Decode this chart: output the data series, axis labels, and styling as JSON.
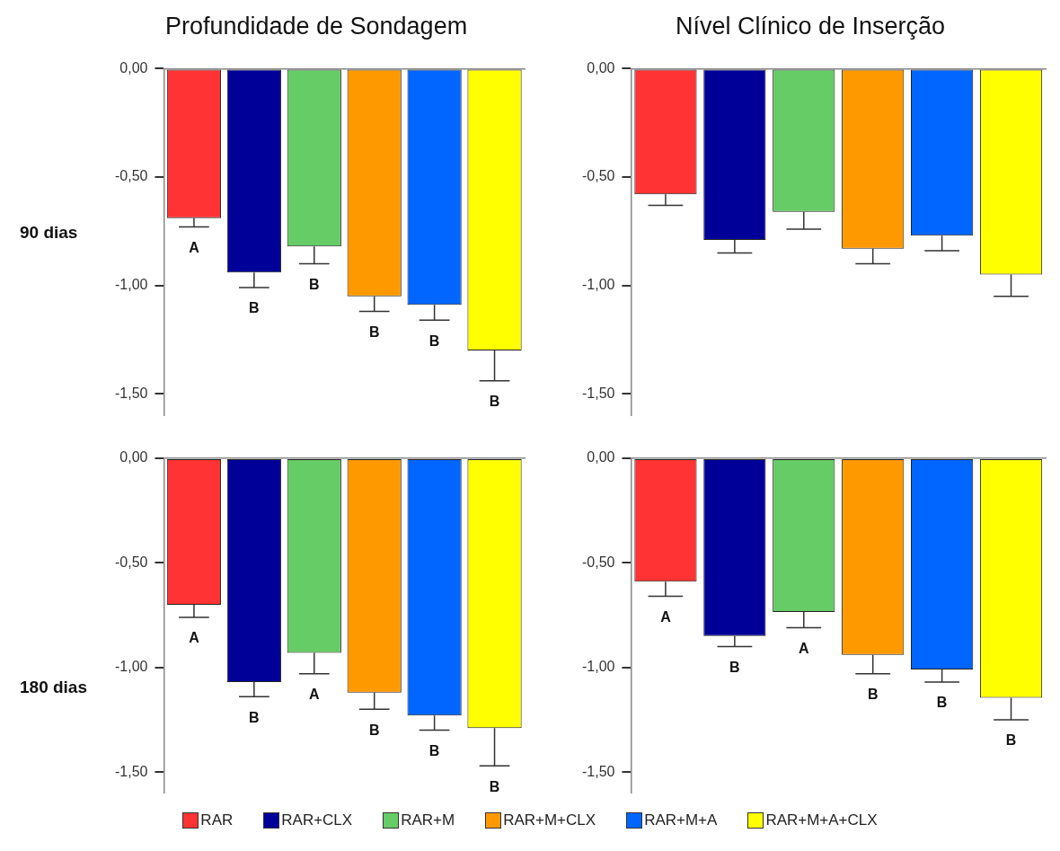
{
  "chart_data": [
    {
      "type": "bar",
      "title": "Profundidade de Sondagem",
      "ylabel": "90 dias",
      "categories": [
        null
      ],
      "ylim": [
        -1.6,
        0
      ],
      "yticks": [
        {
          "value": 0,
          "label": "0,00"
        },
        {
          "value": -0.5,
          "label": "-0,50"
        },
        {
          "value": -1,
          "label": "-1,00"
        },
        {
          "value": -1.5,
          "label": "-1,50"
        }
      ],
      "legend": "bottom",
      "series": [
        {
          "name": "RAR",
          "color": "#ff3333",
          "values": [
            -0.69
          ],
          "errors": [
            [
              -0.73,
              -0.69
            ]
          ]
        },
        {
          "name": "RAR+CLX",
          "color": "#000099",
          "values": [
            -0.94
          ],
          "errors": [
            [
              -1.01,
              -0.94
            ]
          ]
        },
        {
          "name": "RAR+M",
          "color": "#66cc66",
          "values": [
            -0.82
          ],
          "errors": [
            [
              -0.9,
              -0.82
            ]
          ]
        },
        {
          "name": "RAR+M+CLX",
          "color": "#ff9900",
          "values": [
            -1.05
          ],
          "errors": [
            [
              -1.12,
              -1.05
            ]
          ]
        },
        {
          "name": "RAR+M+A",
          "color": "#0066ff",
          "values": [
            -1.09
          ],
          "errors": [
            [
              -1.16,
              -1.09
            ]
          ]
        },
        {
          "name": "RAR+M+A+CLX",
          "color": "#ffff00",
          "values": [
            -1.3
          ],
          "errors": [
            [
              -1.44,
              -1.3
            ]
          ]
        }
      ],
      "annotations": [
        "A",
        "B",
        "B",
        "B",
        "B",
        "B"
      ]
    },
    {
      "type": "bar",
      "title": "Nível Clínico de Inserção",
      "categories": [
        null
      ],
      "ylim": [
        -1.6,
        0
      ],
      "yticks": [
        {
          "value": 0,
          "label": "0,00"
        },
        {
          "value": -0.5,
          "label": "-0,50"
        },
        {
          "value": -1,
          "label": "-1,00"
        },
        {
          "value": -1.5,
          "label": "-1,50"
        }
      ],
      "series": [
        {
          "color": "#ff3333",
          "values": [
            -0.58
          ],
          "errors": [
            [
              -0.63,
              -0.58
            ]
          ]
        },
        {
          "color": "#000099",
          "values": [
            -0.79
          ],
          "errors": [
            [
              -0.85,
              -0.79
            ]
          ]
        },
        {
          "color": "#66cc66",
          "values": [
            -0.66
          ],
          "errors": [
            [
              -0.74,
              -0.66
            ]
          ]
        },
        {
          "color": "#ff9900",
          "values": [
            -0.83
          ],
          "errors": [
            [
              -0.9,
              -0.83
            ]
          ]
        },
        {
          "color": "#0066ff",
          "values": [
            -0.77
          ],
          "errors": [
            [
              -0.84,
              -0.77
            ]
          ]
        },
        {
          "color": "#ffff00",
          "values": [
            -0.95
          ],
          "errors": [
            [
              -1.05,
              -0.95
            ]
          ]
        }
      ]
    },
    {
      "type": "bar",
      "ylabel": "180 dias",
      "categories": [
        null
      ],
      "ylim": [
        -1.6,
        0
      ],
      "yticks": [
        {
          "value": 0,
          "label": "0,00"
        },
        {
          "value": -0.5,
          "label": "-0,50"
        },
        {
          "value": -1,
          "label": "-1,00"
        },
        {
          "value": -1.5,
          "label": "-1,50"
        }
      ],
      "series": [
        {
          "color": "#ff3333",
          "values": [
            -0.7
          ],
          "errors": [
            [
              -0.76,
              -0.7
            ]
          ]
        },
        {
          "color": "#000099",
          "values": [
            -1.07
          ],
          "errors": [
            [
              -1.14,
              -1.07
            ]
          ]
        },
        {
          "color": "#66cc66",
          "values": [
            -0.93
          ],
          "errors": [
            [
              -1.03,
              -0.93
            ]
          ]
        },
        {
          "color": "#ff9900",
          "values": [
            -1.12
          ],
          "errors": [
            [
              -1.2,
              -1.12
            ]
          ]
        },
        {
          "color": "#0066ff",
          "values": [
            -1.23
          ],
          "errors": [
            [
              -1.3,
              -1.23
            ]
          ]
        },
        {
          "color": "#ffff00",
          "values": [
            -1.29
          ],
          "errors": [
            [
              -1.47,
              -1.29
            ]
          ]
        }
      ],
      "annotations": [
        "A",
        "B",
        "A",
        "B",
        "B",
        "B"
      ]
    },
    {
      "type": "bar",
      "categories": [
        null
      ],
      "ylim": [
        -1.6,
        0
      ],
      "yticks": [
        {
          "value": 0,
          "label": "0,00"
        },
        {
          "value": -0.5,
          "label": "-0,50"
        },
        {
          "value": -1,
          "label": "-1,00"
        },
        {
          "value": -1.5,
          "label": "-1,50"
        }
      ],
      "series": [
        {
          "color": "#ff3333",
          "values": [
            -0.59
          ],
          "errors": [
            [
              -0.66,
              -0.59
            ]
          ]
        },
        {
          "color": "#000099",
          "values": [
            -0.85
          ],
          "errors": [
            [
              -0.9,
              -0.85
            ]
          ]
        },
        {
          "color": "#66cc66",
          "values": [
            -0.735
          ],
          "errors": [
            [
              -0.81,
              -0.735
            ]
          ]
        },
        {
          "color": "#ff9900",
          "values": [
            -0.94
          ],
          "errors": [
            [
              -1.03,
              -0.94
            ]
          ]
        },
        {
          "color": "#0066ff",
          "values": [
            -1.01
          ],
          "errors": [
            [
              -1.07,
              -1.01
            ]
          ]
        },
        {
          "color": "#ffff00",
          "values": [
            -1.145
          ],
          "errors": [
            [
              -1.25,
              -1.145
            ]
          ]
        }
      ],
      "annotations": [
        "A",
        "B",
        "A",
        "B",
        "B",
        "B"
      ]
    }
  ]
}
